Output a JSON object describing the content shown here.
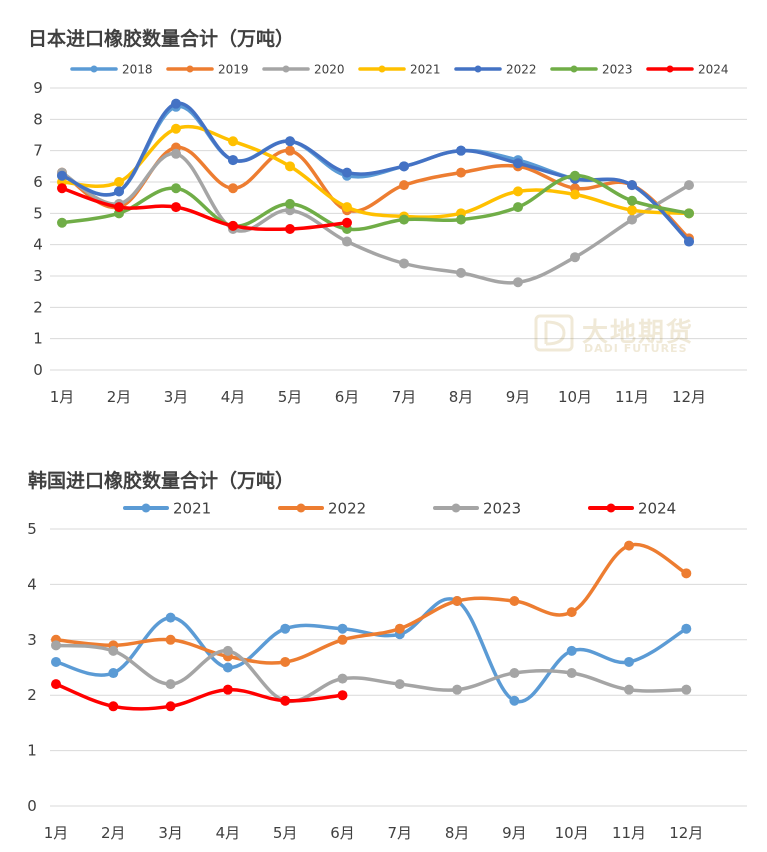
{
  "colors": {
    "2018": "#5b9bd5",
    "2019": "#ed7d31",
    "2020": "#a5a5a5",
    "2021": "#ffc000",
    "2022": "#4472c4",
    "2023": "#70ad47",
    "2024": "#ff0000",
    "grid": "#d9d9d9",
    "text": "#404040",
    "korea_2021": "#5b9bd5",
    "korea_2022": "#ed7d31",
    "korea_2023": "#a5a5a5",
    "korea_2024": "#ff0000"
  },
  "watermark": {
    "cn": "大地期货",
    "en": "DADI FUTURES"
  },
  "chart_data": [
    {
      "type": "line",
      "title": "日本进口橡胶数量合计（万吨）",
      "categories": [
        "1月",
        "2月",
        "3月",
        "4月",
        "5月",
        "6月",
        "7月",
        "8月",
        "9月",
        "10月",
        "11月",
        "12月"
      ],
      "ylim": [
        0,
        9
      ],
      "yticks": [
        "0",
        "1",
        "2",
        "3",
        "4",
        "5",
        "6",
        "7",
        "8",
        "9"
      ],
      "grid": true,
      "legend": "top",
      "series": [
        {
          "name": "2018",
          "color_key": "2018",
          "values": [
            6.2,
            5.7,
            8.4,
            6.7,
            7.3,
            6.2,
            6.5,
            7.0,
            6.7,
            6.1,
            5.9,
            4.1
          ]
        },
        {
          "name": "2019",
          "color_key": "2019",
          "values": [
            6.3,
            5.2,
            7.1,
            5.8,
            7.0,
            5.1,
            5.9,
            6.3,
            6.5,
            5.8,
            5.9,
            4.2
          ]
        },
        {
          "name": "2020",
          "color_key": "2020",
          "values": [
            6.3,
            5.3,
            6.9,
            4.5,
            5.1,
            4.1,
            3.4,
            3.1,
            2.8,
            3.6,
            4.8,
            5.9
          ]
        },
        {
          "name": "2021",
          "color_key": "2021",
          "values": [
            6.0,
            6.0,
            7.7,
            7.3,
            6.5,
            5.2,
            4.9,
            5.0,
            5.7,
            5.6,
            5.1,
            5.0
          ]
        },
        {
          "name": "2022",
          "color_key": "2022",
          "values": [
            6.2,
            5.7,
            8.5,
            6.7,
            7.3,
            6.3,
            6.5,
            7.0,
            6.6,
            6.1,
            5.9,
            4.1
          ]
        },
        {
          "name": "2023",
          "color_key": "2023",
          "values": [
            4.7,
            5.0,
            5.8,
            4.6,
            5.3,
            4.5,
            4.8,
            4.8,
            5.2,
            6.2,
            5.4,
            5.0
          ]
        },
        {
          "name": "2024",
          "color_key": "2024",
          "values": [
            5.8,
            5.2,
            5.2,
            4.6,
            4.5,
            4.7,
            null,
            null,
            null,
            null,
            null,
            null
          ]
        }
      ]
    },
    {
      "type": "line",
      "title": "韩国进口橡胶数量合计（万吨）",
      "categories": [
        "1月",
        "2月",
        "3月",
        "4月",
        "5月",
        "6月",
        "7月",
        "8月",
        "9月",
        "10月",
        "11月",
        "12月"
      ],
      "ylim": [
        0,
        5
      ],
      "yticks": [
        "0",
        "1",
        "2",
        "3",
        "4",
        "5"
      ],
      "grid": true,
      "legend": "top",
      "series": [
        {
          "name": "2021",
          "color_key": "korea_2021",
          "values": [
            2.6,
            2.4,
            3.4,
            2.5,
            3.2,
            3.2,
            3.1,
            3.7,
            1.9,
            2.8,
            2.6,
            3.2
          ]
        },
        {
          "name": "2022",
          "color_key": "korea_2022",
          "values": [
            3.0,
            2.9,
            3.0,
            2.7,
            2.6,
            3.0,
            3.2,
            3.7,
            3.7,
            3.5,
            4.7,
            4.2
          ]
        },
        {
          "name": "2023",
          "color_key": "korea_2023",
          "values": [
            2.9,
            2.8,
            2.2,
            2.8,
            1.9,
            2.3,
            2.2,
            2.1,
            2.4,
            2.4,
            2.1,
            2.1
          ]
        },
        {
          "name": "2024",
          "color_key": "korea_2024",
          "values": [
            2.2,
            1.8,
            1.8,
            2.1,
            1.9,
            2.0,
            null,
            null,
            null,
            null,
            null,
            null
          ]
        }
      ]
    }
  ]
}
